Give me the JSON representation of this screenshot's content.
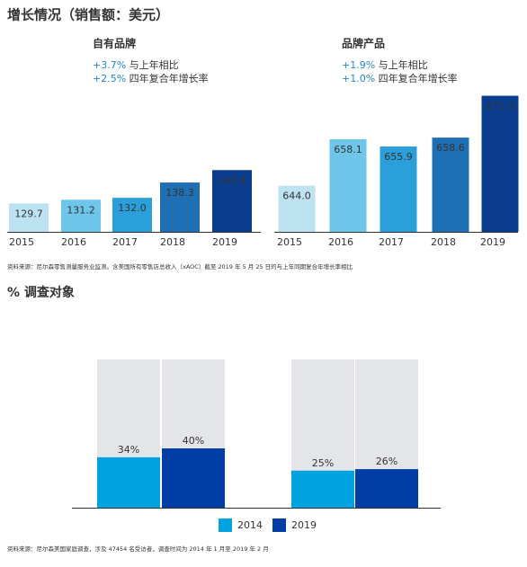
{
  "title": "增长情况（销售额：美元）",
  "chart_data": [
    {
      "type": "bar",
      "title": "自有品牌",
      "stats": [
        {
          "change": "+3.7%",
          "label": "与上年相比"
        },
        {
          "change": "+2.5%",
          "label": "四年复合年增长率"
        }
      ],
      "categories": [
        "2015",
        "2016",
        "2017",
        "2018",
        "2019"
      ],
      "values": [
        129.7,
        131.2,
        132.0,
        138.3,
        143.4
      ],
      "value_labels": [
        "129.7",
        "131.2",
        "132.0",
        "138.3",
        "143.4"
      ],
      "colors": [
        "#bde2f2",
        "#6ec6ea",
        "#2b9fd9",
        "#1f6fb5",
        "#0b3d8e"
      ],
      "ylim": [
        118,
        179
      ]
    },
    {
      "type": "bar",
      "title": "品牌产品",
      "stats": [
        {
          "change": "+1.9%",
          "label": "与上年相比"
        },
        {
          "change": "+1.0%",
          "label": "四年复合年增长率"
        }
      ],
      "categories": [
        "2015",
        "2016",
        "2017",
        "2018",
        "2019"
      ],
      "values": [
        644.0,
        658.1,
        655.9,
        658.6,
        671.3
      ],
      "value_labels": [
        "644.0",
        "658.1",
        "655.9",
        "658.6",
        "671.3"
      ],
      "colors": [
        "#bde2f2",
        "#6ec6ea",
        "#2b9fd9",
        "#1f6fb5",
        "#0b3d8e"
      ],
      "ylim": [
        630,
        675
      ]
    },
    {
      "type": "grouped",
      "title": "% 调查对象",
      "categories": [
        null,
        null
      ],
      "series": [
        {
          "name": "2014",
          "color": "#00a3e0",
          "values": [
            34,
            25
          ],
          "value_labels": [
            "34%",
            "25%"
          ]
        },
        {
          "name": "2019",
          "color": "#003da5",
          "values": [
            40,
            26
          ],
          "value_labels": [
            "40%",
            "26%"
          ]
        }
      ],
      "ylim": [
        0,
        100
      ],
      "background": "#e3e5e9",
      "legend": "bottom"
    }
  ],
  "notes": [
    "资料来源：尼尔森零售测量服务业监测。含美国所有零售店总收入（xAOC）截至 2019 年 5 月 25 日的与上年同期复合年增长率相比",
    "资料来源：尼尔森美国家庭调查，涉及 47454 名受访者，调查时间为 2014 年 1 月至 2019 年 2 月"
  ]
}
